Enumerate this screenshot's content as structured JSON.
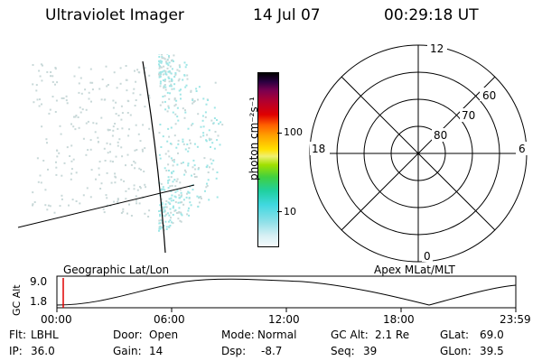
{
  "header": {
    "title": "Ultraviolet Imager",
    "date": "14 Jul 07",
    "time": "00:29:18 UT"
  },
  "colorbar": {
    "label": "photon cm⁻²s⁻¹",
    "tick_labels": [
      "100",
      "10"
    ]
  },
  "polar_plot": {
    "clock_labels": [
      "12",
      "18",
      "6",
      "0"
    ],
    "latitude_labels": [
      "60",
      "70",
      "80"
    ]
  },
  "timeline": {
    "left_caption": "Geographic Lat/Lon",
    "right_caption": "Apex MLat/MLT",
    "ylabel": "GC Alt",
    "y_ticks": [
      "9.0",
      "1.8"
    ],
    "x_ticks": [
      "00:00",
      "06:00",
      "12:00",
      "18:00",
      "23:59"
    ]
  },
  "footer": {
    "rows": [
      [
        {
          "label": "Flt:",
          "value": "LBHL"
        },
        {
          "label": "Door:",
          "value": "Open"
        },
        {
          "label": "Mode:",
          "value": "Normal"
        },
        {
          "label": "GC Alt:",
          "value": "2.1 Re"
        },
        {
          "label": "GLat:",
          "value": "69.0"
        }
      ],
      [
        {
          "label": "IP:",
          "value": "36.0"
        },
        {
          "label": "Gain:",
          "value": "14"
        },
        {
          "label": "Dsp:",
          "value": "-8.7"
        },
        {
          "label": "Seq:",
          "value": "39"
        },
        {
          "label": "GLon:",
          "value": "39.5"
        }
      ]
    ]
  },
  "colors": {
    "aurora": "#9fe6e6",
    "faint": "#c8d8d8",
    "marker": "#e00000"
  }
}
